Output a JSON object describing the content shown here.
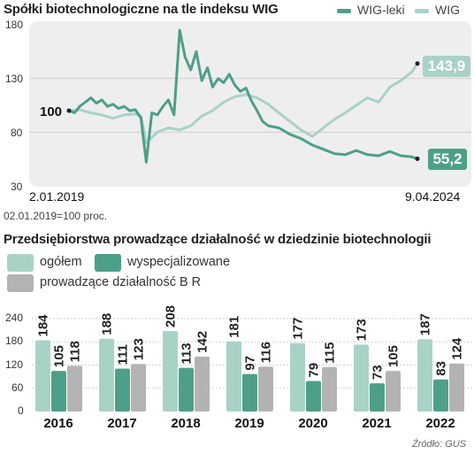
{
  "colors": {
    "wig_leki": "#4e9f88",
    "wig": "#a9d2c6",
    "panel_bg": "#eeeeee",
    "ogolem": "#a9d2c6",
    "wyspecjalizowane": "#4e9f88",
    "br": "#b3b3b3"
  },
  "chart_data": [
    {
      "type": "line",
      "title": "Spółki biotechnologiczne na tle indeksu WIG",
      "x_start_label": "2.01.2019",
      "x_end_label": "9.04.2024",
      "note": "02.01.2019=100 proc.",
      "ylim": [
        30,
        180
      ],
      "yticks": [
        "180",
        "130",
        "80",
        "30"
      ],
      "grid": true,
      "legend_position": "top-right",
      "start_label": "100",
      "series": [
        {
          "name": "WIG-leki",
          "color": "#4e9f88",
          "end_label": "55,2",
          "x": [
            "2019-01",
            "2019-02",
            "2019-03",
            "2019-04",
            "2019-05",
            "2019-06",
            "2019-07",
            "2019-08",
            "2019-09",
            "2019-10",
            "2019-11",
            "2019-12",
            "2020-01",
            "2020-02",
            "2020-03",
            "2020-04",
            "2020-05",
            "2020-06",
            "2020-07",
            "2020-08",
            "2020-09",
            "2020-10",
            "2020-11",
            "2020-12",
            "2021-01",
            "2021-02",
            "2021-03",
            "2021-04",
            "2021-05",
            "2021-06",
            "2021-07",
            "2021-08",
            "2021-09",
            "2021-10",
            "2021-11",
            "2021-12",
            "2022-01",
            "2022-03",
            "2022-05",
            "2022-07",
            "2022-09",
            "2022-11",
            "2023-01",
            "2023-03",
            "2023-05",
            "2023-07",
            "2023-09",
            "2023-11",
            "2024-01",
            "2024-03",
            "2024-04"
          ],
          "values": [
            100,
            98,
            104,
            108,
            112,
            107,
            110,
            104,
            106,
            102,
            104,
            100,
            101,
            93,
            52,
            98,
            96,
            104,
            110,
            96,
            175,
            150,
            138,
            155,
            128,
            140,
            122,
            130,
            126,
            134,
            124,
            118,
            121,
            109,
            100,
            90,
            86,
            84,
            78,
            74,
            68,
            64,
            60,
            59,
            63,
            59,
            58,
            62,
            58,
            57,
            55.2
          ]
        },
        {
          "name": "WIG",
          "color": "#a9d2c6",
          "end_label": "143,9",
          "x": [
            "2019-01",
            "2019-03",
            "2019-05",
            "2019-07",
            "2019-09",
            "2019-11",
            "2020-01",
            "2020-02",
            "2020-03",
            "2020-05",
            "2020-07",
            "2020-09",
            "2020-11",
            "2021-01",
            "2021-03",
            "2021-05",
            "2021-07",
            "2021-09",
            "2021-11",
            "2022-01",
            "2022-03",
            "2022-05",
            "2022-07",
            "2022-09",
            "2022-11",
            "2023-01",
            "2023-03",
            "2023-05",
            "2023-07",
            "2023-09",
            "2023-11",
            "2024-01",
            "2024-03",
            "2024-04"
          ],
          "values": [
            100,
            101,
            98,
            96,
            93,
            96,
            97,
            95,
            70,
            80,
            84,
            82,
            86,
            95,
            100,
            108,
            113,
            115,
            112,
            106,
            98,
            90,
            82,
            76,
            84,
            92,
            98,
            105,
            112,
            108,
            122,
            128,
            136,
            143.9
          ]
        }
      ]
    },
    {
      "type": "bar",
      "title": "Przedsiębiorstwa prowadzące działalność w dziedzinie biotechnologii",
      "categories": [
        "2016",
        "2017",
        "2018",
        "2019",
        "2020",
        "2021",
        "2022"
      ],
      "ylim": [
        0,
        240
      ],
      "yticks": [
        "240",
        "180",
        "120",
        "60",
        "0"
      ],
      "legend_position": "top-left",
      "series": [
        {
          "name": "ogółem",
          "color": "#a9d2c6",
          "values": [
            184,
            188,
            208,
            181,
            177,
            173,
            187
          ]
        },
        {
          "name": "wyspecjalizowane",
          "color": "#4e9f88",
          "values": [
            105,
            111,
            113,
            97,
            79,
            73,
            83
          ]
        },
        {
          "name": "prowadzące działalność B R",
          "color": "#b3b3b3",
          "values": [
            118,
            123,
            142,
            116,
            115,
            105,
            124
          ]
        }
      ],
      "source": "Źródło: GUS"
    }
  ]
}
